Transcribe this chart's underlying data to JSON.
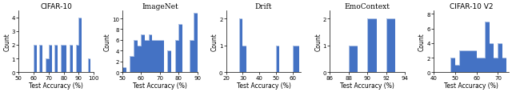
{
  "charts": [
    {
      "title": "CIFAR-10",
      "title_style": "normal",
      "xlabel": "Test Accuracy (%)",
      "ylabel": "Count",
      "xlim": [
        50,
        100
      ],
      "ylim": [
        0,
        4.5
      ],
      "yticks": [
        0,
        1,
        2,
        3,
        4
      ],
      "xticks": [
        50,
        60,
        70,
        80,
        90,
        100
      ],
      "bin_edges": [
        50,
        52,
        54,
        56,
        58,
        60,
        62,
        64,
        66,
        68,
        70,
        72,
        74,
        76,
        78,
        80,
        82,
        84,
        86,
        88,
        90,
        92,
        94,
        96,
        98,
        100
      ],
      "bin_counts": [
        0,
        0,
        0,
        0,
        0,
        2,
        0,
        2,
        0,
        1,
        2,
        0,
        2,
        0,
        2,
        2,
        0,
        2,
        0,
        2,
        4,
        0,
        0,
        1,
        0
      ]
    },
    {
      "title": "ImageNet",
      "title_style": "smallcaps",
      "xlabel": "Test Accuracy (%)",
      "ylabel": "Count",
      "xlim": [
        50,
        90
      ],
      "ylim": [
        0,
        11.5
      ],
      "yticks": [
        0,
        2,
        4,
        6,
        8,
        10
      ],
      "xticks": [
        50,
        60,
        70,
        80,
        90
      ],
      "bin_edges": [
        50,
        52,
        54,
        56,
        58,
        60,
        62,
        64,
        66,
        68,
        70,
        72,
        74,
        76,
        78,
        80,
        82,
        84,
        86,
        88,
        90
      ],
      "bin_counts": [
        1,
        0,
        3,
        6,
        5,
        7,
        6,
        7,
        6,
        6,
        6,
        0,
        4,
        0,
        6,
        9,
        0,
        0,
        6,
        11
      ]
    },
    {
      "title": "Drift",
      "title_style": "smallcaps",
      "xlabel": "Test Accuracy (%)",
      "ylabel": "Count",
      "xlim": [
        20,
        65
      ],
      "ylim": [
        0,
        2.3
      ],
      "yticks": [
        0,
        1,
        2
      ],
      "xticks": [
        20,
        30,
        40,
        50,
        60
      ],
      "bin_edges": [
        20,
        22,
        24,
        26,
        28,
        30,
        32,
        34,
        36,
        38,
        40,
        42,
        44,
        46,
        48,
        50,
        52,
        54,
        56,
        58,
        60,
        62,
        64
      ],
      "bin_counts": [
        0,
        0,
        0,
        0,
        2,
        1,
        0,
        0,
        0,
        0,
        0,
        0,
        0,
        0,
        0,
        1,
        0,
        0,
        0,
        0,
        1,
        1
      ]
    },
    {
      "title": "EmoContext",
      "title_style": "smallcaps",
      "xlabel": "Test Accuracy (%)",
      "ylabel": "Count",
      "xlim": [
        86,
        94
      ],
      "ylim": [
        0,
        2.3
      ],
      "yticks": [
        0,
        1,
        2
      ],
      "xticks": [
        86,
        88,
        90,
        92,
        94
      ],
      "bin_edges": [
        86,
        87,
        88,
        89,
        90,
        91,
        92,
        93,
        94
      ],
      "bin_counts": [
        0,
        0,
        1,
        0,
        2,
        0,
        2,
        0
      ]
    },
    {
      "title": "CIFAR-10 V2",
      "title_style": "normal",
      "xlabel": "Test Accuracy (%)",
      "ylabel": "Count",
      "xlim": [
        40,
        75
      ],
      "ylim": [
        0,
        8.5
      ],
      "yticks": [
        0,
        2,
        4,
        6,
        8
      ],
      "xticks": [
        40,
        50,
        60,
        70
      ],
      "bin_edges": [
        40,
        42,
        44,
        46,
        48,
        50,
        52,
        54,
        56,
        58,
        60,
        62,
        64,
        66,
        68,
        70,
        72,
        74
      ],
      "bin_counts": [
        0,
        0,
        0,
        0,
        2,
        1,
        3,
        3,
        3,
        3,
        2,
        2,
        7,
        4,
        2,
        4,
        2
      ]
    }
  ],
  "bar_color": "#4472C4",
  "figure_width": 6.4,
  "figure_height": 1.16,
  "dpi": 100
}
